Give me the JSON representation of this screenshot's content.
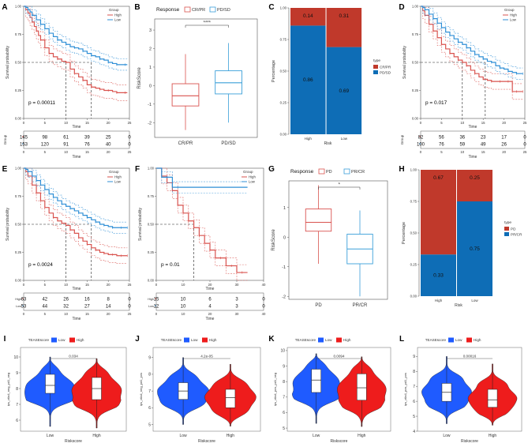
{
  "chart_data": [
    {
      "panel": "A",
      "type": "line",
      "subtype": "kaplan-meier",
      "legend_title": "Group",
      "legend": [
        "High",
        "Low"
      ],
      "xlabel": "Time",
      "ylabel": "Survival probability",
      "xticks": [
        "0",
        "5",
        "10",
        "15",
        "20",
        "25"
      ],
      "yticks": [
        "0.00",
        "0.25",
        "0.50",
        "0.75",
        "1.00"
      ],
      "xlim": [
        0,
        25
      ],
      "ylim": [
        0,
        1
      ],
      "pvalue": "p = 0.00011",
      "median_lines": [
        10,
        16
      ],
      "series": [
        {
          "name": "High",
          "x": [
            0,
            0.5,
            1,
            1.5,
            2,
            2.5,
            3,
            3.5,
            4,
            5,
            6,
            7,
            8,
            9,
            10,
            11,
            12,
            13,
            14,
            15,
            16,
            17,
            18,
            19,
            20,
            21,
            22,
            23,
            24,
            24.5
          ],
          "y": [
            1,
            0.97,
            0.94,
            0.9,
            0.86,
            0.82,
            0.78,
            0.74,
            0.7,
            0.63,
            0.58,
            0.55,
            0.53,
            0.51,
            0.5,
            0.44,
            0.4,
            0.37,
            0.34,
            0.3,
            0.28,
            0.27,
            0.26,
            0.25,
            0.25,
            0.24,
            0.23,
            0.23,
            0.23,
            0.23
          ]
        },
        {
          "name": "Low",
          "x": [
            0,
            0.5,
            1,
            1.5,
            2,
            3,
            4,
            5,
            6,
            7,
            8,
            9,
            10,
            11,
            12,
            13,
            14,
            15,
            16,
            17,
            18,
            19,
            20,
            21,
            22,
            23,
            24,
            24.5
          ],
          "y": [
            1,
            0.99,
            0.97,
            0.95,
            0.92,
            0.88,
            0.84,
            0.8,
            0.76,
            0.73,
            0.7,
            0.68,
            0.66,
            0.64,
            0.63,
            0.62,
            0.6,
            0.58,
            0.56,
            0.55,
            0.53,
            0.52,
            0.5,
            0.49,
            0.48,
            0.48,
            0.48,
            0.48
          ]
        }
      ],
      "risk_table": {
        "label": "Group",
        "xticks": [
          "0",
          "5",
          "10",
          "15",
          "20",
          "25"
        ],
        "xlabel": "Time",
        "rows": [
          {
            "name": "High",
            "values": [
              "145",
              "98",
              "61",
              "39",
              "25",
              "0"
            ]
          },
          {
            "name": "Low",
            "values": [
              "153",
              "120",
              "91",
              "76",
              "40",
              "0"
            ]
          }
        ]
      }
    },
    {
      "panel": "B",
      "type": "box",
      "legend_title": "Response",
      "legend": [
        "CR/PR",
        "PD/SD"
      ],
      "categories": [
        "CR/PR",
        "PD/SD"
      ],
      "xlabel": "",
      "ylabel": "RiskScore",
      "ylim": [
        -2.8,
        3.6
      ],
      "yticks": [
        "-2",
        "-1",
        "0",
        "1",
        "2",
        "3"
      ],
      "significance": "****",
      "boxes": [
        {
          "name": "CR/PR",
          "min": -2.4,
          "q1": -1.1,
          "median": -0.55,
          "q3": 0.1,
          "max": 1.7,
          "color": "#d9534f"
        },
        {
          "name": "PD/SD",
          "min": -2.0,
          "q1": -0.45,
          "median": 0.15,
          "q3": 0.8,
          "max": 2.3,
          "color": "#3a9fd9"
        }
      ]
    },
    {
      "panel": "C",
      "type": "bar",
      "subtype": "stacked-percent",
      "categories": [
        "High",
        "Low"
      ],
      "xlabel": "Risk",
      "ylabel": "Percentage",
      "yticks": [
        "0.00",
        "0.25",
        "0.50",
        "0.75",
        "1.00"
      ],
      "ylim": [
        0,
        1
      ],
      "legend_title": "type",
      "series": [
        {
          "name": "CR/PR",
          "values": [
            0.14,
            0.31
          ],
          "labels": [
            "0.14",
            "0.31"
          ],
          "color": "#c0392b"
        },
        {
          "name": "PD/SD",
          "values": [
            0.86,
            0.69
          ],
          "labels": [
            "0.86",
            "0.69"
          ],
          "color": "#0e6db6"
        }
      ]
    },
    {
      "panel": "D",
      "type": "line",
      "subtype": "kaplan-meier",
      "legend_title": "Group",
      "legend": [
        "High",
        "Low"
      ],
      "xlabel": "Time",
      "ylabel": "Survival probability",
      "xticks": [
        "0",
        "5",
        "10",
        "15",
        "20",
        "25"
      ],
      "yticks": [
        "0.00",
        "0.25",
        "0.50",
        "0.75",
        "1.00"
      ],
      "xlim": [
        0,
        25
      ],
      "ylim": [
        0,
        1
      ],
      "pvalue": "p = 0.017",
      "median_lines": [
        10,
        15.5
      ],
      "series": [
        {
          "name": "High",
          "x": [
            0,
            0.5,
            1,
            2,
            3,
            4,
            5,
            6,
            7,
            8,
            9,
            10,
            11,
            12,
            13,
            14,
            15,
            16,
            17,
            18,
            19,
            20,
            21,
            22,
            23,
            24,
            24.5
          ],
          "y": [
            1,
            0.96,
            0.92,
            0.84,
            0.78,
            0.72,
            0.66,
            0.62,
            0.58,
            0.55,
            0.52,
            0.5,
            0.47,
            0.43,
            0.4,
            0.37,
            0.35,
            0.34,
            0.33,
            0.33,
            0.33,
            0.33,
            0.33,
            0.24,
            0.24,
            0.24,
            0.24
          ]
        },
        {
          "name": "Low",
          "x": [
            0,
            0.5,
            1,
            2,
            3,
            4,
            5,
            6,
            7,
            8,
            9,
            10,
            11,
            12,
            13,
            14,
            15,
            16,
            17,
            18,
            19,
            20,
            21,
            22,
            23,
            24,
            24.5
          ],
          "y": [
            1,
            0.99,
            0.97,
            0.93,
            0.89,
            0.85,
            0.81,
            0.77,
            0.74,
            0.71,
            0.68,
            0.66,
            0.63,
            0.6,
            0.57,
            0.55,
            0.53,
            0.51,
            0.5,
            0.47,
            0.45,
            0.44,
            0.42,
            0.41,
            0.4,
            0.4,
            0.4
          ]
        }
      ],
      "risk_table": {
        "label": "Group",
        "xticks": [
          "0",
          "5",
          "10",
          "15",
          "20",
          "25"
        ],
        "xlabel": "Time",
        "rows": [
          {
            "name": "High",
            "values": [
              "82",
              "56",
              "36",
              "23",
              "17",
              "0"
            ]
          },
          {
            "name": "Low",
            "values": [
              "100",
              "76",
              "59",
              "49",
              "26",
              "0"
            ]
          }
        ]
      }
    },
    {
      "panel": "E",
      "type": "line",
      "subtype": "kaplan-meier",
      "legend_title": "Group",
      "legend": [
        "High",
        "Low"
      ],
      "xlabel": "Time",
      "ylabel": "Survival probability",
      "xticks": [
        "0",
        "5",
        "10",
        "15",
        "20",
        "25"
      ],
      "yticks": [
        "0.00",
        "0.25",
        "0.50",
        "0.75",
        "1.00"
      ],
      "xlim": [
        0,
        25
      ],
      "ylim": [
        0,
        1
      ],
      "pvalue": "p = 0.0024",
      "median_lines": [
        10,
        16
      ],
      "series": [
        {
          "name": "High",
          "x": [
            0,
            0.5,
            1,
            2,
            3,
            4,
            5,
            6,
            7,
            8,
            9,
            10,
            11,
            12,
            13,
            14,
            15,
            16,
            17,
            18,
            19,
            20,
            21,
            22,
            23,
            24,
            24.5
          ],
          "y": [
            1,
            0.97,
            0.93,
            0.85,
            0.78,
            0.71,
            0.65,
            0.6,
            0.56,
            0.53,
            0.51,
            0.49,
            0.45,
            0.42,
            0.38,
            0.35,
            0.32,
            0.29,
            0.27,
            0.25,
            0.24,
            0.23,
            0.23,
            0.22,
            0.22,
            0.22,
            0.22
          ]
        },
        {
          "name": "Low",
          "x": [
            0,
            0.5,
            1,
            2,
            3,
            4,
            5,
            6,
            7,
            8,
            9,
            10,
            11,
            12,
            13,
            14,
            15,
            16,
            17,
            18,
            19,
            20,
            21,
            22,
            23,
            24,
            24.5
          ],
          "y": [
            1,
            0.99,
            0.97,
            0.93,
            0.89,
            0.85,
            0.81,
            0.77,
            0.74,
            0.71,
            0.68,
            0.66,
            0.64,
            0.62,
            0.6,
            0.58,
            0.56,
            0.54,
            0.52,
            0.5,
            0.49,
            0.48,
            0.47,
            0.47,
            0.47,
            0.47,
            0.47
          ]
        }
      ],
      "risk_table": {
        "label": "",
        "row_labels": [
          "High",
          "Low"
        ],
        "xticks": [
          "0",
          "5",
          "10",
          "15",
          "20",
          "25"
        ],
        "xlabel": "Time",
        "rows": [
          {
            "name": "High",
            "values": [
              "63",
              "42",
              "26",
              "16",
              "8",
              "0"
            ]
          },
          {
            "name": "Low",
            "values": [
              "53",
              "44",
              "32",
              "27",
              "14",
              "0"
            ]
          }
        ]
      }
    },
    {
      "panel": "F",
      "type": "line",
      "subtype": "kaplan-meier",
      "legend_title": "Group",
      "legend": [
        "High",
        "Low"
      ],
      "xlabel": "Time",
      "ylabel": "Survival probability",
      "xticks": [
        "0",
        "10",
        "20",
        "30",
        "40"
      ],
      "yticks": [
        "0.00",
        "0.25",
        "0.50",
        "0.75",
        "1.00"
      ],
      "xlim": [
        0,
        40
      ],
      "ylim": [
        0,
        1
      ],
      "pvalue": "p = 0.01",
      "median_lines": [
        14
      ],
      "series": [
        {
          "name": "High",
          "x": [
            0,
            2,
            4,
            6,
            8,
            10,
            12,
            14,
            16,
            18,
            20,
            22,
            24,
            26,
            28,
            30,
            32,
            34
          ],
          "y": [
            1,
            0.93,
            0.87,
            0.8,
            0.67,
            0.6,
            0.53,
            0.47,
            0.4,
            0.33,
            0.27,
            0.2,
            0.2,
            0.13,
            0.13,
            0.07,
            0.07,
            0.07
          ]
        },
        {
          "name": "Low",
          "x": [
            0,
            2,
            4,
            6,
            8,
            34
          ],
          "y": [
            1,
            0.92,
            0.92,
            0.83,
            0.83,
            0.83
          ]
        }
      ],
      "risk_table": {
        "label": "",
        "row_labels": [
          "High",
          "Low"
        ],
        "xticks": [
          "0",
          "10",
          "20",
          "30",
          "40"
        ],
        "xlabel": "Time",
        "rows": [
          {
            "name": "High",
            "values": [
              "15",
              "10",
              "6",
              "3",
              "0"
            ]
          },
          {
            "name": "Low",
            "values": [
              "12",
              "10",
              "4",
              "3",
              "0"
            ]
          }
        ]
      }
    },
    {
      "panel": "G",
      "type": "box",
      "legend_title": "Response",
      "legend": [
        "PD",
        "PR/CR"
      ],
      "categories": [
        "PD",
        "PR/CR"
      ],
      "xlabel": "",
      "ylabel": "RiskScore",
      "ylim": [
        -2.1,
        1.9
      ],
      "yticks": [
        "-2",
        "-1",
        "0",
        "1"
      ],
      "significance": "*",
      "boxes": [
        {
          "name": "PD",
          "min": -0.9,
          "q1": 0.2,
          "median": 0.5,
          "q3": 0.95,
          "max": 1.75,
          "color": "#d9534f"
        },
        {
          "name": "PR/CR",
          "min": -2.0,
          "q1": -0.9,
          "median": -0.4,
          "q3": 0.1,
          "max": 0.9,
          "color": "#3a9fd9"
        }
      ]
    },
    {
      "panel": "H",
      "type": "bar",
      "subtype": "stacked-percent",
      "categories": [
        "High",
        "Low"
      ],
      "xlabel": "Risk",
      "ylabel": "Percentage",
      "yticks": [
        "0.00",
        "0.25",
        "0.50",
        "0.75",
        "1.00"
      ],
      "ylim": [
        0,
        1
      ],
      "legend_title": "type",
      "series": [
        {
          "name": "PD",
          "values": [
            0.67,
            0.25
          ],
          "labels": [
            "0.67",
            "0.25"
          ],
          "color": "#c0392b"
        },
        {
          "name": "PR/CR",
          "values": [
            0.33,
            0.75
          ],
          "labels": [
            "0.33",
            "0.75"
          ],
          "color": "#0e6db6"
        }
      ]
    },
    {
      "panel": "I",
      "type": "violin",
      "legend_title": "TEASEscore",
      "legend": [
        "Low",
        "High"
      ],
      "categories": [
        "Low",
        "High"
      ],
      "xlabel": "Riskscore",
      "ylabel": "ips_ctla4_neg_pd1_neg",
      "ylim": [
        5.3,
        10.6
      ],
      "yticks": [
        "6",
        "7",
        "8",
        "9",
        "10"
      ],
      "pvalue": "0.034",
      "groups": [
        {
          "name": "Low",
          "min": 5.6,
          "q1": 7.7,
          "median": 8.2,
          "q3": 8.9,
          "max": 10.0,
          "color": "#1f5bff"
        },
        {
          "name": "High",
          "min": 5.5,
          "q1": 7.3,
          "median": 8.0,
          "q3": 8.7,
          "max": 9.9,
          "color": "#ee1c1c"
        }
      ]
    },
    {
      "panel": "J",
      "type": "violin",
      "legend_title": "TEASEscore",
      "legend": [
        "Low",
        "High"
      ],
      "categories": [
        "Low",
        "High"
      ],
      "xlabel": "Riskscore",
      "ylabel": "ips_ctla4_neg_pd1_pos",
      "ylim": [
        4.6,
        9.6
      ],
      "yticks": [
        "5",
        "6",
        "7",
        "8",
        "9"
      ],
      "pvalue": "4.2e-05",
      "groups": [
        {
          "name": "Low",
          "min": 5.0,
          "q1": 6.5,
          "median": 7.0,
          "q3": 7.5,
          "max": 9.0,
          "color": "#1f5bff"
        },
        {
          "name": "High",
          "min": 4.9,
          "q1": 6.0,
          "median": 6.6,
          "q3": 7.1,
          "max": 8.6,
          "color": "#ee1c1c"
        }
      ]
    },
    {
      "panel": "K",
      "type": "violin",
      "legend_title": "TEASEscore",
      "legend": [
        "Low",
        "High"
      ],
      "categories": [
        "Low",
        "High"
      ],
      "xlabel": "Riskscore",
      "ylabel": "ips_ctla4_pos_pd1_neg",
      "ylim": [
        4.8,
        10.2
      ],
      "yticks": [
        "5",
        "6",
        "7",
        "8",
        "9",
        "10"
      ],
      "pvalue": "0.0094",
      "groups": [
        {
          "name": "Low",
          "min": 5.3,
          "q1": 7.3,
          "median": 8.1,
          "q3": 8.8,
          "max": 9.8,
          "color": "#1f5bff"
        },
        {
          "name": "High",
          "min": 5.1,
          "q1": 6.8,
          "median": 7.6,
          "q3": 8.5,
          "max": 9.6,
          "color": "#ee1c1c"
        }
      ]
    },
    {
      "panel": "L",
      "type": "violin",
      "legend_title": "TEASEscore",
      "legend": [
        "Low",
        "High"
      ],
      "categories": [
        "Low",
        "High"
      ],
      "xlabel": "Riskscore",
      "ylabel": "ips_ctla4_pos_pd1_pos",
      "ylim": [
        4.0,
        9.6
      ],
      "yticks": [
        "4",
        "5",
        "6",
        "7",
        "8",
        "9"
      ],
      "pvalue": "0.00016",
      "groups": [
        {
          "name": "Low",
          "min": 4.5,
          "q1": 6.0,
          "median": 6.6,
          "q3": 7.2,
          "max": 9.0,
          "color": "#1f5bff"
        },
        {
          "name": "High",
          "min": 4.4,
          "q1": 5.6,
          "median": 6.1,
          "q3": 6.8,
          "max": 8.5,
          "color": "#ee1c1c"
        }
      ]
    }
  ]
}
